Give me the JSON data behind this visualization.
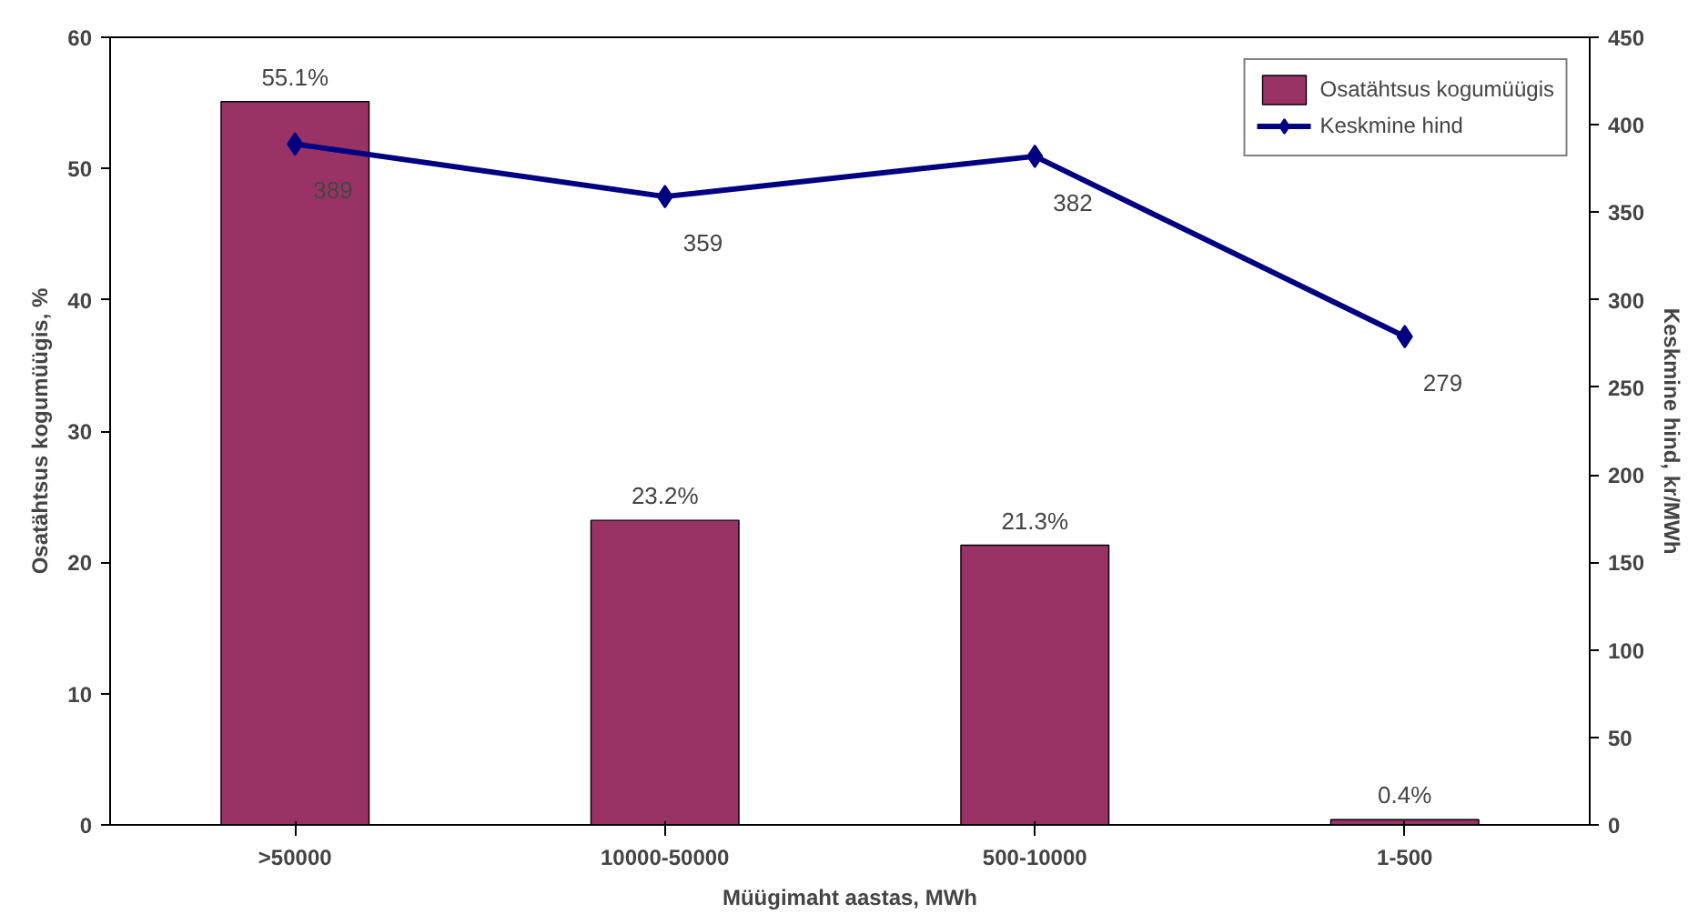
{
  "chart_data": {
    "type": "bar",
    "xlabel": "Müügimaht aastas, MWh",
    "ylabel": "Osatähtsus kogumüügis, %",
    "y2label": "Keskmine hind, kr/MWh",
    "categories": [
      ">50000",
      "10000-50000",
      "500-10000",
      "1-500"
    ],
    "series": [
      {
        "name": "Osatähtsus kogumüügis",
        "color": "#993366",
        "values": [
          55.1,
          23.2,
          21.3,
          0.4
        ],
        "value_labels": [
          "55.1%",
          "23.2%",
          "21.3%",
          "0.4%"
        ]
      },
      {
        "name": "Keskmine hind",
        "type": "line",
        "axis": "y2",
        "color": "#000080",
        "marker": "diamond",
        "values": [
          389,
          359,
          382,
          279
        ],
        "value_labels": [
          "389",
          "359",
          "382",
          "279"
        ]
      }
    ],
    "ylim": [
      0,
      60
    ],
    "yticks": [
      0,
      10,
      20,
      30,
      40,
      50,
      60
    ],
    "y2lim": [
      0,
      450
    ],
    "y2ticks": [
      0,
      50,
      100,
      150,
      200,
      250,
      300,
      350,
      400,
      450
    ],
    "grid": false,
    "legend": "top right"
  }
}
